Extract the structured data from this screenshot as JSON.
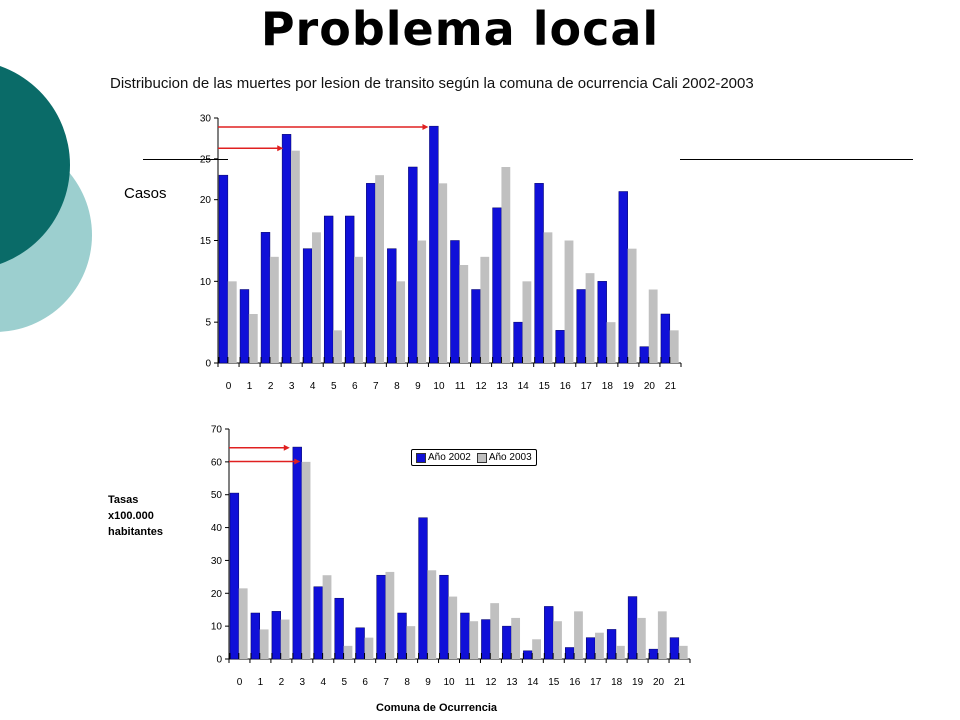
{
  "slide_title": "Problema local",
  "colors": {
    "series_2002": "#1010d8",
    "series_2003": "#c0c0c0",
    "highlight_arrow": "#e02020",
    "accent_dark": "#0a6b68",
    "accent_light": "#9ccfcf"
  },
  "chart_data": [
    {
      "type": "bar",
      "title": "Distribucion de las muertes por lesion de transito según la comuna de ocurrencia Cali 2002-2003",
      "ylabel": "Casos",
      "xlabel": "",
      "categories": [
        "0",
        "1",
        "2",
        "3",
        "4",
        "5",
        "6",
        "7",
        "8",
        "9",
        "10",
        "11",
        "12",
        "13",
        "14",
        "15",
        "16",
        "17",
        "18",
        "19",
        "20",
        "21"
      ],
      "ylim": [
        0,
        30
      ],
      "yticks": [
        0,
        5,
        10,
        15,
        20,
        25,
        30
      ],
      "series": [
        {
          "name": "Año 2002",
          "values": [
            23,
            9,
            16,
            28,
            14,
            18,
            18,
            22,
            14,
            24,
            29,
            15,
            9,
            19,
            5,
            22,
            4,
            9,
            10,
            21,
            2,
            6
          ]
        },
        {
          "name": "Año 2003",
          "values": [
            10,
            6,
            13,
            26,
            16,
            4,
            13,
            23,
            10,
            15,
            22,
            12,
            13,
            24,
            10,
            16,
            15,
            11,
            5,
            14,
            9,
            4
          ]
        }
      ]
    },
    {
      "type": "bar",
      "title": "",
      "ylabel": "Tasas\nx100.000\nhabitantes",
      "xlabel": "Comuna de Ocurrencia",
      "categories": [
        "0",
        "1",
        "2",
        "3",
        "4",
        "5",
        "6",
        "7",
        "8",
        "9",
        "10",
        "11",
        "12",
        "13",
        "14",
        "15",
        "16",
        "17",
        "18",
        "19",
        "20",
        "21"
      ],
      "ylim": [
        0,
        70
      ],
      "yticks": [
        0,
        10,
        20,
        30,
        40,
        50,
        60,
        70
      ],
      "legend_position": "top-center",
      "series": [
        {
          "name": "Año 2002",
          "values": [
            50.5,
            14,
            14.5,
            64.5,
            22,
            18.5,
            9.5,
            25.5,
            14,
            43,
            25.5,
            14,
            12,
            10,
            2.5,
            16,
            3.5,
            6.5,
            9,
            19,
            3,
            6.5
          ]
        },
        {
          "name": "Año 2003",
          "values": [
            21.5,
            9,
            12,
            60,
            25.5,
            4,
            6.5,
            26.5,
            10,
            27,
            19,
            11.5,
            17,
            12.5,
            6,
            11.5,
            14.5,
            8,
            4,
            12.5,
            14.5,
            4
          ]
        }
      ]
    }
  ]
}
